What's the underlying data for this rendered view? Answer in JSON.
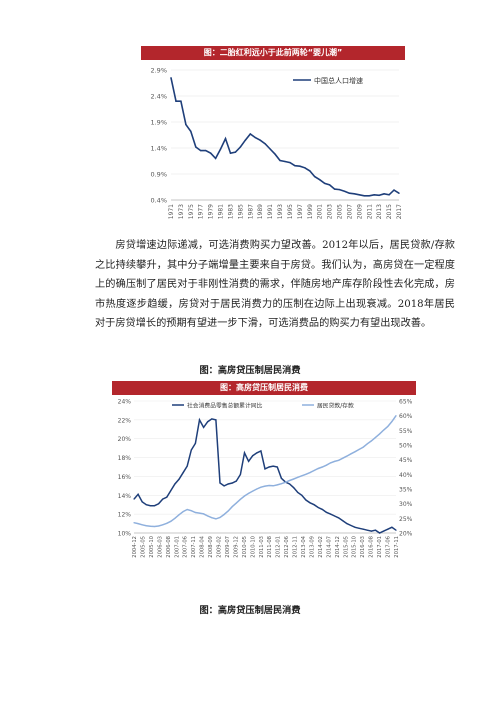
{
  "chart_data": [
    {
      "type": "line",
      "title": "图：二胎红利远小于此前两轮“婴儿潮”",
      "series": [
        {
          "name": "中国总人口增速",
          "x": [
            1971,
            1972,
            1973,
            1974,
            1975,
            1976,
            1977,
            1978,
            1979,
            1980,
            1981,
            1982,
            1983,
            1984,
            1985,
            1986,
            1987,
            1988,
            1989,
            1990,
            1991,
            1992,
            1993,
            1994,
            1995,
            1996,
            1997,
            1998,
            1999,
            2000,
            2001,
            2002,
            2003,
            2004,
            2005,
            2006,
            2007,
            2008,
            2009,
            2010,
            2011,
            2012,
            2013,
            2014,
            2015,
            2016,
            2017
          ],
          "values": [
            2.75,
            2.3,
            2.3,
            1.85,
            1.72,
            1.42,
            1.35,
            1.35,
            1.3,
            1.2,
            1.38,
            1.58,
            1.3,
            1.32,
            1.42,
            1.55,
            1.67,
            1.6,
            1.55,
            1.48,
            1.38,
            1.28,
            1.16,
            1.14,
            1.12,
            1.06,
            1.05,
            1.02,
            0.96,
            0.85,
            0.79,
            0.72,
            0.69,
            0.61,
            0.6,
            0.57,
            0.53,
            0.52,
            0.5,
            0.48,
            0.48,
            0.5,
            0.49,
            0.52,
            0.5,
            0.59,
            0.53
          ]
        }
      ],
      "y_ticks": [
        "2.9%",
        "2.4%",
        "1.9%",
        "1.4%",
        "0.9%",
        "0.4%"
      ],
      "x_ticks": [
        "1971",
        "1973",
        "1975",
        "1977",
        "1979",
        "1981",
        "1983",
        "1985",
        "1987",
        "1989",
        "1991",
        "1993",
        "1995",
        "1997",
        "1999",
        "2001",
        "2003",
        "2005",
        "2007",
        "2009",
        "2011",
        "2013",
        "2015",
        "2017"
      ],
      "ylim": [
        0.4,
        2.9
      ],
      "legend": "top-right",
      "colors": {
        "line": "#1f3f7a",
        "title_bg": "#b3262c"
      }
    },
    {
      "type": "line",
      "title": "图：高房贷压制居民消费",
      "x_ticks": [
        "2004-12",
        "2005-05",
        "2005-10",
        "2006-03",
        "2006-08",
        "2007-01",
        "2007-06",
        "2007-11",
        "2008-04",
        "2008-09",
        "2009-02",
        "2009-07",
        "2009-12",
        "2010-05",
        "2010-10",
        "2011-03",
        "2011-08",
        "2012-01",
        "2012-06",
        "2012-11",
        "2013-04",
        "2013-09",
        "2014-02",
        "2014-07",
        "2014-12",
        "2015-05",
        "2015-10",
        "2016-03",
        "2016-08",
        "2017-01",
        "2017-06",
        "2017-11"
      ],
      "y_left_ticks": [
        "24%",
        "22%",
        "20%",
        "18%",
        "16%",
        "14%",
        "12%",
        "10%"
      ],
      "y_right_ticks": [
        "65%",
        "60%",
        "55%",
        "50%",
        "45%",
        "40%",
        "35%",
        "30%",
        "25%",
        "20%"
      ],
      "ylim_left": [
        10,
        24
      ],
      "ylim_right": [
        20,
        65
      ],
      "legend": "top",
      "series": [
        {
          "name": "社会消费品零售总额累计同比",
          "axis": "left",
          "color": "#1f3f7a",
          "x": [
            0,
            1,
            2,
            3,
            4,
            5,
            6,
            7,
            8,
            9,
            10,
            11,
            12,
            13,
            14,
            15,
            16,
            17,
            18,
            19,
            20,
            21,
            22,
            23,
            24,
            25,
            26,
            27,
            28,
            29,
            30,
            31,
            32,
            33,
            34,
            35,
            36,
            37,
            38,
            39,
            40,
            41,
            42,
            43,
            44,
            45,
            46,
            47,
            48,
            49,
            50,
            51,
            52,
            53,
            54,
            55,
            56,
            57,
            58,
            59,
            60,
            61,
            62,
            63,
            64
          ],
          "values": [
            13.6,
            14.1,
            13.3,
            13.0,
            12.9,
            12.9,
            13.1,
            13.6,
            13.8,
            14.5,
            15.2,
            15.7,
            16.4,
            17.1,
            18.8,
            19.5,
            22.0,
            21.2,
            21.8,
            22.1,
            22.0,
            15.3,
            15.0,
            15.2,
            15.3,
            15.5,
            16.2,
            18.5,
            17.6,
            18.2,
            18.5,
            18.7,
            16.8,
            17.0,
            17.1,
            17.0,
            15.8,
            15.4,
            15.2,
            14.8,
            14.3,
            14.0,
            13.5,
            13.2,
            13.0,
            12.7,
            12.5,
            12.2,
            12.0,
            11.8,
            11.6,
            11.3,
            11.0,
            10.8,
            10.6,
            10.5,
            10.4,
            10.3,
            10.2,
            10.3,
            10.0,
            10.2,
            10.4,
            10.6,
            10.3
          ]
        },
        {
          "name": "居民贷款/存款",
          "axis": "right",
          "color": "#8fb0dd",
          "x": [
            0,
            1,
            2,
            3,
            4,
            5,
            6,
            7,
            8,
            9,
            10,
            11,
            12,
            13,
            14,
            15,
            16,
            17,
            18,
            19,
            20,
            21,
            22,
            23,
            24,
            25,
            26,
            27,
            28,
            29,
            30,
            31,
            32,
            33,
            34,
            35,
            36,
            37,
            38,
            39,
            40,
            41,
            42,
            43,
            44,
            45,
            46,
            47,
            48,
            49,
            50,
            51,
            52,
            53,
            54,
            55,
            56,
            57,
            58,
            59,
            60,
            61,
            62,
            63,
            64
          ],
          "values": [
            23.5,
            23.2,
            22.8,
            22.5,
            22.3,
            22.2,
            22.4,
            22.8,
            23.3,
            24.0,
            25.0,
            26.2,
            27.3,
            28.0,
            27.6,
            27.0,
            26.8,
            26.5,
            25.8,
            25.2,
            24.8,
            25.3,
            26.3,
            27.5,
            29.0,
            30.2,
            31.5,
            32.6,
            33.5,
            34.3,
            35.0,
            35.6,
            36.0,
            36.2,
            36.1,
            36.4,
            36.8,
            37.3,
            37.9,
            38.4,
            39.0,
            39.5,
            40.0,
            40.6,
            41.3,
            42.0,
            42.5,
            43.1,
            43.9,
            44.4,
            44.8,
            45.5,
            46.2,
            47.0,
            47.7,
            48.5,
            49.3,
            50.4,
            51.4,
            52.6,
            53.8,
            55.1,
            56.3,
            58.0,
            60.0
          ]
        }
      ]
    }
  ],
  "body": {
    "paragraph": "房贷增速边际递减，可选消费购买力望改善。2012年以后，居民贷款/存款之比持续攀升，其中分子端增量主要来自于房贷。我们认为，高房贷在一定程度上的确压制了居民对于非刚性消费的需求，伴随房地产库存阶段性去化完成，房市热度逐步趋缓，房贷对于居民消费力的压制在边际上出现衰减。2018年居民对于房贷增长的预期有望进一步下滑，可选消费品的购买力有望出现改善。",
    "caption_mid": "图：高房贷压制居民消费",
    "caption_bottom": "图：高房贷压制居民消费"
  }
}
